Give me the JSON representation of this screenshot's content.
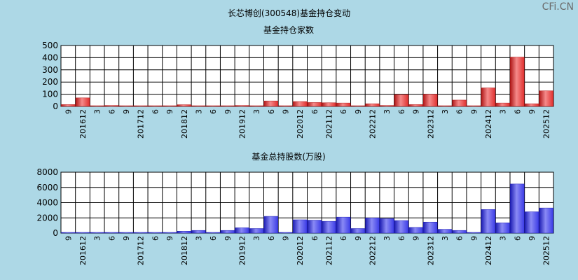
{
  "title": "长芯博创(300548)基金持仓变动",
  "watermark": "CFi.CN",
  "colors": {
    "background": "#ADD8E6",
    "plot_bg": "#FFFFFF",
    "grid": "#000000",
    "bar_red": "#E0302F",
    "bar_blue": "#3C3CE6"
  },
  "chart_data": [
    {
      "type": "bar",
      "title": "基金持仓家数",
      "ylim": [
        0,
        500
      ],
      "yticks": [
        0,
        100,
        200,
        300,
        400,
        500
      ],
      "grid": true,
      "categories": [
        "9",
        "201612",
        "3",
        "6",
        "9",
        "201712",
        "6",
        "9",
        "201812",
        "3",
        "6",
        "9",
        "201912",
        "3",
        "6",
        "9",
        "202012",
        "6",
        "202112",
        "6",
        "9",
        "202212",
        "3",
        "6",
        "9",
        "202312",
        "3",
        "6",
        "9",
        "202412",
        "3",
        "6",
        "9",
        "202512"
      ],
      "values": [
        15,
        70,
        3,
        8,
        4,
        3,
        4,
        4,
        14,
        2,
        3,
        3,
        8,
        2,
        45,
        3,
        40,
        32,
        30,
        28,
        3,
        22,
        8,
        97,
        15,
        100,
        3,
        52,
        3,
        152,
        28,
        405,
        22,
        128
      ]
    },
    {
      "type": "bar",
      "title": "基金总持股数(万股)",
      "ylim": [
        0,
        8000
      ],
      "yticks": [
        0,
        2000,
        4000,
        6000,
        8000
      ],
      "grid": true,
      "categories": [
        "9",
        "201612",
        "3",
        "6",
        "9",
        "201712",
        "6",
        "9",
        "201812",
        "3",
        "6",
        "9",
        "201912",
        "3",
        "6",
        "9",
        "202012",
        "6",
        "202112",
        "6",
        "9",
        "202212",
        "3",
        "6",
        "9",
        "202312",
        "3",
        "6",
        "9",
        "202412",
        "3",
        "6",
        "9",
        "202512"
      ],
      "values": [
        50,
        60,
        50,
        40,
        40,
        40,
        40,
        40,
        250,
        350,
        50,
        350,
        700,
        600,
        2200,
        50,
        1750,
        1700,
        1550,
        2100,
        600,
        2000,
        1900,
        1650,
        750,
        1450,
        500,
        350,
        50,
        3100,
        1350,
        6450,
        2800,
        3300
      ]
    }
  ]
}
